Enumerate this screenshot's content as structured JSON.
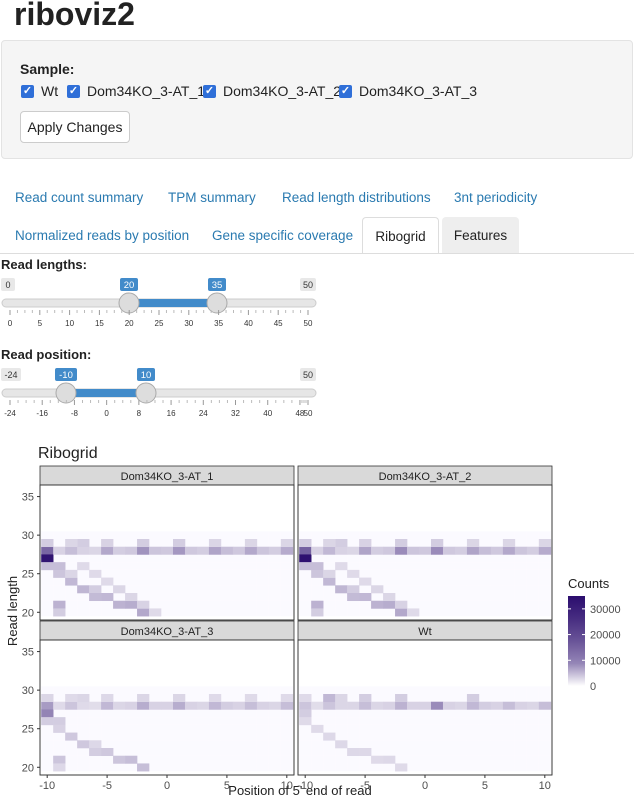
{
  "app": {
    "title": "riboviz2"
  },
  "sample": {
    "label": "Sample:",
    "options": [
      "Wt",
      "Dom34KO_3-AT_1",
      "Dom34KO_3-AT_2",
      "Dom34KO_3-AT_3"
    ],
    "checked": [
      true,
      true,
      true,
      true
    ],
    "apply_label": "Apply Changes"
  },
  "tabs": {
    "row1": [
      "Read count summary",
      "TPM summary",
      "Read length distributions",
      "3nt periodicity"
    ],
    "row2": [
      "Normalized reads by position",
      "Gene specific coverage",
      "Ribogrid",
      "Features"
    ],
    "active": "Ribogrid"
  },
  "sliders": {
    "read_lengths": {
      "label": "Read lengths:",
      "min": "0",
      "max": "50",
      "from": "20",
      "to": "35",
      "ticks": [
        "0",
        "5",
        "10",
        "15",
        "20",
        "25",
        "30",
        "35",
        "40",
        "45",
        "50"
      ]
    },
    "read_position": {
      "label": "Read position:",
      "min": "-24",
      "max": "50",
      "from": "-10",
      "to": "10",
      "ticks": [
        "-24",
        "-16",
        "-8",
        "0",
        "8",
        "16",
        "24",
        "32",
        "40",
        "48",
        "50"
      ]
    }
  },
  "chart_data": {
    "type": "heatmap",
    "title": "Ribogrid",
    "xlabel": "Position of 5' end of read",
    "ylabel": "Read length",
    "xlim": [
      -10.6,
      10.6
    ],
    "ylim": [
      19,
      36.5
    ],
    "xticks": [
      "-10",
      "-5",
      "0",
      "5",
      "10"
    ],
    "yticks": [
      "20",
      "25",
      "30",
      "35"
    ],
    "legend": {
      "title": "Counts",
      "ticks": [
        "30000",
        "20000",
        "10000",
        "0"
      ],
      "max": 35000,
      "position": "right"
    },
    "colors": {
      "low": "#ffffff",
      "high": "#2b0d6e",
      "strip": "#d9d9d9"
    },
    "panels": [
      {
        "name": "Dom34KO_3-AT_1",
        "cells": [
          [
            -10,
            28,
            14000
          ],
          [
            -10,
            27,
            33000
          ],
          [
            -10,
            26,
            2500
          ],
          [
            -9,
            26,
            2500
          ],
          [
            -10,
            29,
            1500
          ],
          [
            -9,
            28,
            1200
          ],
          [
            -8,
            28,
            2500
          ],
          [
            -7,
            28,
            1200
          ],
          [
            -7,
            29,
            1500
          ],
          [
            -6,
            28,
            1000
          ],
          [
            -5,
            28,
            4500
          ],
          [
            -4,
            28,
            1500
          ],
          [
            -3,
            28,
            1800
          ],
          [
            -2,
            28,
            7000
          ],
          [
            -1,
            28,
            2000
          ],
          [
            0,
            28,
            1800
          ],
          [
            1,
            28,
            6500
          ],
          [
            2,
            28,
            1800
          ],
          [
            3,
            28,
            1500
          ],
          [
            4,
            28,
            5000
          ],
          [
            5,
            28,
            2500
          ],
          [
            6,
            28,
            1800
          ],
          [
            7,
            28,
            4500
          ],
          [
            8,
            28,
            2000
          ],
          [
            9,
            28,
            1500
          ],
          [
            10,
            28,
            4200
          ],
          [
            -8,
            29,
            1000
          ],
          [
            -5,
            29,
            1200
          ],
          [
            -2,
            29,
            1500
          ],
          [
            1,
            29,
            1500
          ],
          [
            4,
            29,
            1000
          ],
          [
            7,
            29,
            1000
          ],
          [
            10,
            29,
            1000
          ],
          [
            -9,
            25,
            2000
          ],
          [
            -8,
            24,
            3000
          ],
          [
            -7,
            23,
            3200
          ],
          [
            -6,
            23,
            1500
          ],
          [
            -6,
            22,
            2800
          ],
          [
            -5,
            22,
            3000
          ],
          [
            -4,
            21,
            3500
          ],
          [
            -3,
            21,
            4000
          ],
          [
            -2,
            20,
            4500
          ],
          [
            -9,
            21,
            3500
          ],
          [
            -9,
            20,
            1500
          ],
          [
            -8,
            25,
            1000
          ],
          [
            -7,
            26,
            800
          ],
          [
            -6,
            25,
            800
          ],
          [
            -5,
            24,
            800
          ],
          [
            -4,
            23,
            1000
          ],
          [
            -3,
            22,
            1000
          ],
          [
            -2,
            21,
            1200
          ],
          [
            -1,
            20,
            800
          ]
        ]
      },
      {
        "name": "Dom34KO_3-AT_2",
        "cells": [
          [
            -10,
            28,
            15000
          ],
          [
            -10,
            27,
            34000
          ],
          [
            -10,
            26,
            2500
          ],
          [
            -9,
            26,
            2500
          ],
          [
            -10,
            29,
            1500
          ],
          [
            -9,
            28,
            1200
          ],
          [
            -8,
            28,
            3000
          ],
          [
            -7,
            28,
            1200
          ],
          [
            -7,
            29,
            1500
          ],
          [
            -6,
            28,
            1000
          ],
          [
            -5,
            28,
            5000
          ],
          [
            -4,
            28,
            1500
          ],
          [
            -3,
            28,
            1800
          ],
          [
            -2,
            28,
            8000
          ],
          [
            -1,
            28,
            2000
          ],
          [
            0,
            28,
            1800
          ],
          [
            1,
            28,
            8000
          ],
          [
            2,
            28,
            1800
          ],
          [
            3,
            28,
            1500
          ],
          [
            4,
            28,
            5000
          ],
          [
            5,
            28,
            2500
          ],
          [
            6,
            28,
            1800
          ],
          [
            7,
            28,
            4500
          ],
          [
            8,
            28,
            2000
          ],
          [
            9,
            28,
            1500
          ],
          [
            10,
            28,
            4200
          ],
          [
            -8,
            29,
            1000
          ],
          [
            -5,
            29,
            1200
          ],
          [
            -2,
            29,
            1500
          ],
          [
            1,
            29,
            1500
          ],
          [
            4,
            29,
            1000
          ],
          [
            7,
            29,
            1000
          ],
          [
            10,
            29,
            1000
          ],
          [
            -9,
            25,
            2000
          ],
          [
            -8,
            24,
            3000
          ],
          [
            -7,
            23,
            3200
          ],
          [
            -6,
            23,
            1500
          ],
          [
            -6,
            22,
            2800
          ],
          [
            -5,
            22,
            3000
          ],
          [
            -4,
            21,
            3500
          ],
          [
            -3,
            21,
            4000
          ],
          [
            -2,
            20,
            4500
          ],
          [
            -9,
            21,
            3500
          ],
          [
            -9,
            20,
            1500
          ],
          [
            -8,
            25,
            1000
          ],
          [
            -7,
            26,
            800
          ],
          [
            -6,
            25,
            800
          ],
          [
            -5,
            24,
            800
          ],
          [
            -4,
            23,
            1000
          ],
          [
            -3,
            22,
            1000
          ],
          [
            -2,
            21,
            1200
          ],
          [
            -1,
            20,
            800
          ]
        ]
      },
      {
        "name": "Dom34KO_3-AT_3",
        "cells": [
          [
            -10,
            28,
            6000
          ],
          [
            -10,
            27,
            9000
          ],
          [
            -10,
            26,
            1500
          ],
          [
            -9,
            26,
            1500
          ],
          [
            -10,
            29,
            1000
          ],
          [
            -9,
            28,
            800
          ],
          [
            -8,
            28,
            2000
          ],
          [
            -7,
            28,
            800
          ],
          [
            -7,
            29,
            1000
          ],
          [
            -6,
            28,
            700
          ],
          [
            -5,
            28,
            3000
          ],
          [
            -4,
            28,
            1000
          ],
          [
            -3,
            28,
            1200
          ],
          [
            -2,
            28,
            4000
          ],
          [
            -1,
            28,
            1200
          ],
          [
            0,
            28,
            1200
          ],
          [
            1,
            28,
            4000
          ],
          [
            2,
            28,
            1200
          ],
          [
            3,
            28,
            1000
          ],
          [
            4,
            28,
            3000
          ],
          [
            5,
            28,
            1500
          ],
          [
            6,
            28,
            1200
          ],
          [
            7,
            28,
            2500
          ],
          [
            8,
            28,
            1200
          ],
          [
            9,
            28,
            1000
          ],
          [
            10,
            28,
            2500
          ],
          [
            -8,
            29,
            800
          ],
          [
            -5,
            29,
            900
          ],
          [
            -2,
            29,
            1000
          ],
          [
            1,
            29,
            1000
          ],
          [
            4,
            29,
            800
          ],
          [
            7,
            29,
            800
          ],
          [
            10,
            29,
            800
          ],
          [
            -9,
            25,
            1200
          ],
          [
            -8,
            24,
            1800
          ],
          [
            -7,
            23,
            1800
          ],
          [
            -6,
            23,
            900
          ],
          [
            -6,
            22,
            1500
          ],
          [
            -5,
            22,
            1800
          ],
          [
            -4,
            21,
            2000
          ],
          [
            -3,
            21,
            2500
          ],
          [
            -2,
            20,
            2500
          ],
          [
            -9,
            21,
            2000
          ],
          [
            -9,
            20,
            900
          ]
        ]
      },
      {
        "name": "Wt",
        "cells": [
          [
            -10,
            28,
            2000
          ],
          [
            -10,
            27,
            1500
          ],
          [
            -10,
            26,
            800
          ],
          [
            -10,
            29,
            800
          ],
          [
            -9,
            28,
            700
          ],
          [
            -8,
            28,
            2000
          ],
          [
            -8,
            29,
            3000
          ],
          [
            -7,
            28,
            1000
          ],
          [
            -7,
            29,
            1000
          ],
          [
            -6,
            28,
            1000
          ],
          [
            -5,
            28,
            2500
          ],
          [
            -5,
            29,
            1500
          ],
          [
            -4,
            28,
            1000
          ],
          [
            -3,
            28,
            1200
          ],
          [
            -2,
            28,
            3500
          ],
          [
            -2,
            29,
            1500
          ],
          [
            -1,
            28,
            1200
          ],
          [
            0,
            28,
            1200
          ],
          [
            1,
            28,
            8000
          ],
          [
            2,
            28,
            1200
          ],
          [
            3,
            28,
            1000
          ],
          [
            4,
            28,
            3000
          ],
          [
            4,
            29,
            1500
          ],
          [
            5,
            28,
            1500
          ],
          [
            6,
            28,
            1200
          ],
          [
            7,
            28,
            2500
          ],
          [
            8,
            28,
            1200
          ],
          [
            9,
            28,
            1000
          ],
          [
            10,
            28,
            2500
          ],
          [
            -9,
            25,
            800
          ],
          [
            -8,
            24,
            900
          ],
          [
            -7,
            23,
            900
          ],
          [
            -6,
            22,
            900
          ],
          [
            -5,
            22,
            900
          ],
          [
            -4,
            21,
            800
          ],
          [
            -3,
            21,
            900
          ],
          [
            -2,
            20,
            800
          ]
        ]
      }
    ]
  }
}
